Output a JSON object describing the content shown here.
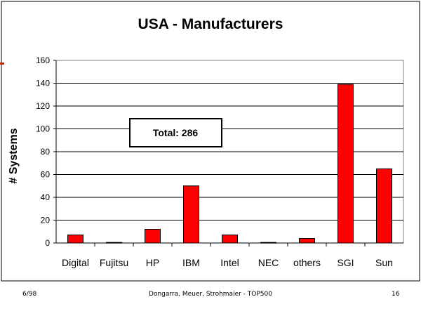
{
  "chart_data": {
    "type": "bar",
    "title": "USA - Manufacturers",
    "xlabel": "",
    "ylabel": "# Systems",
    "categories": [
      "Digital",
      "Fujitsu",
      "HP",
      "IBM",
      "Intel",
      "NEC",
      "others",
      "SGI",
      "Sun"
    ],
    "values": [
      7,
      0.5,
      12,
      50,
      7,
      0.5,
      4,
      139,
      65
    ],
    "ylim": [
      0,
      160
    ],
    "yticks": [
      0,
      20,
      40,
      60,
      80,
      100,
      120,
      140,
      160
    ],
    "grid": true,
    "legend": "none",
    "annotation": "Total: 286"
  },
  "colors": {
    "bar": "#ff0000",
    "accent_mark": "#cc2200"
  },
  "footer": {
    "left": "6/98",
    "center": "Dongarra, Meuer, Strohmaier - TOP500",
    "right": "16"
  }
}
